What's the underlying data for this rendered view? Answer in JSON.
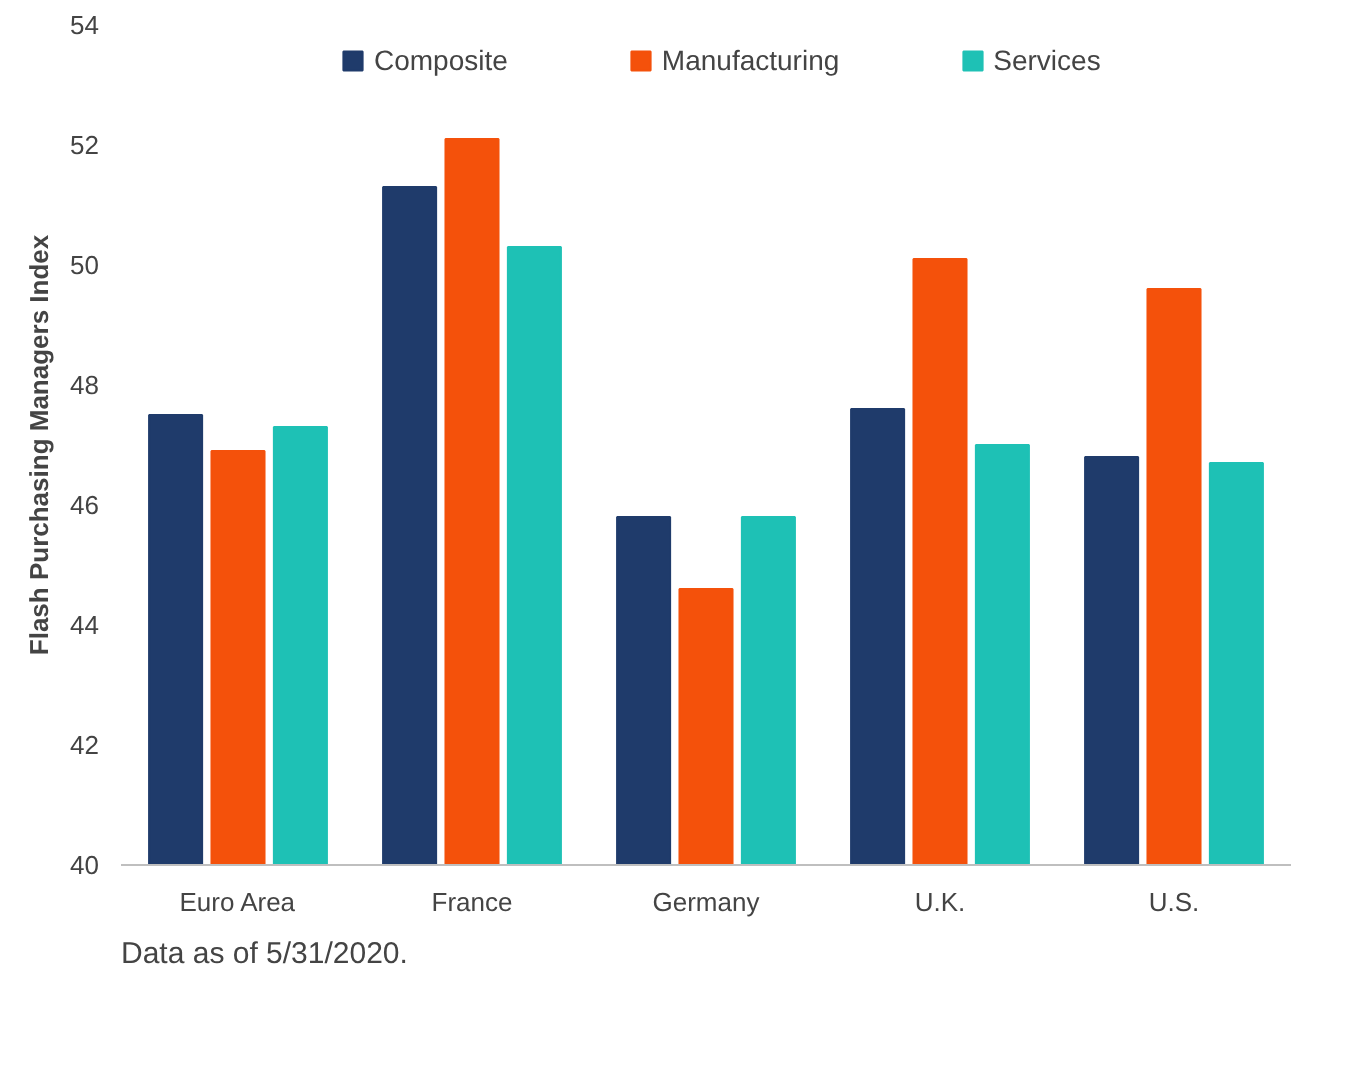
{
  "chart_data": {
    "type": "bar",
    "ylabel": "Flash Purchasing Managers Index",
    "categories": [
      "Euro Area",
      "France",
      "Germany",
      "U.K.",
      "U.S."
    ],
    "series": [
      {
        "name": "Composite",
        "color": "#1f3b6b",
        "values": [
          47.5,
          51.3,
          45.8,
          47.6,
          46.8
        ]
      },
      {
        "name": "Manufacturing",
        "color": "#f4510b",
        "values": [
          46.9,
          52.1,
          44.6,
          50.1,
          49.6
        ]
      },
      {
        "name": "Services",
        "color": "#1ec1b5",
        "values": [
          47.3,
          50.3,
          45.8,
          47.0,
          46.7
        ]
      }
    ],
    "ylim": [
      40,
      54
    ],
    "yticks": [
      40,
      42,
      44,
      46,
      48,
      50,
      52,
      54
    ],
    "grid": false,
    "legend": "top",
    "annotations": [
      "Data as of 5/31/2020."
    ]
  }
}
